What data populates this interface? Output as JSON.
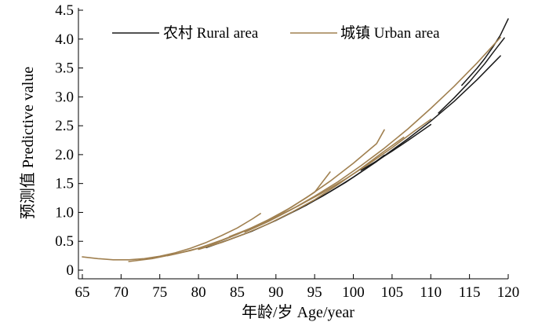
{
  "chart_data": {
    "type": "line",
    "xlabel": "年龄/岁 Age/year",
    "ylabel": "预测值 Predictive value",
    "xlim": [
      65,
      120
    ],
    "ylim": [
      0,
      4.5
    ],
    "xticks": [
      65,
      70,
      75,
      80,
      85,
      90,
      95,
      100,
      105,
      110,
      115,
      120
    ],
    "yticks": [
      "0",
      "0.5",
      "1.0",
      "1.5",
      "2.0",
      "2.5",
      "3.0",
      "3.5",
      "4.0",
      "4.5"
    ],
    "legend_position": "top-center",
    "grid": false,
    "series": [
      {
        "name": "农村 Rural area",
        "color": "#1a1a1a",
        "segments": [
          {
            "x": [
              81,
              84,
              87,
              90,
              93,
              96,
              99,
              102,
              104
            ],
            "y": [
              0.39,
              0.53,
              0.68,
              0.86,
              1.06,
              1.28,
              1.52,
              1.79,
              1.99
            ]
          },
          {
            "x": [
              91,
              94,
              97,
              100,
              103,
              106
            ],
            "y": [
              0.93,
              1.13,
              1.36,
              1.61,
              1.88,
              2.17
            ]
          },
          {
            "x": [
              101,
              103,
              105,
              107,
              110
            ],
            "y": [
              1.73,
              1.89,
              2.06,
              2.24,
              2.52
            ]
          },
          {
            "x": [
              104,
              107,
              110,
              113,
              116,
              119
            ],
            "y": [
              1.98,
              2.27,
              2.58,
              2.92,
              3.3,
              3.71
            ]
          },
          {
            "x": [
              111,
              113,
              115,
              117,
              118,
              119.5
            ],
            "y": [
              2.72,
              2.98,
              3.26,
              3.58,
              3.76,
              4.02
            ]
          },
          {
            "x": [
              114,
              116,
              117,
              118,
              119,
              120
            ],
            "y": [
              3.2,
              3.5,
              3.67,
              3.86,
              4.07,
              4.35
            ]
          }
        ]
      },
      {
        "name": "城镇 Urban area",
        "color": "#a08050",
        "segments": [
          {
            "x": [
              65,
              67,
              69,
              71,
              73,
              75,
              77,
              79,
              81,
              83,
              85,
              87,
              88
            ],
            "y": [
              0.23,
              0.2,
              0.18,
              0.18,
              0.2,
              0.24,
              0.3,
              0.38,
              0.48,
              0.6,
              0.73,
              0.89,
              0.98
            ]
          },
          {
            "x": [
              71,
              74,
              77,
              80,
              83,
              86,
              89,
              92,
              95,
              97
            ],
            "y": [
              0.15,
              0.2,
              0.28,
              0.38,
              0.52,
              0.68,
              0.87,
              1.09,
              1.35,
              1.7
            ]
          },
          {
            "x": [
              76,
              79,
              82,
              85,
              88,
              91,
              94,
              97,
              100,
              103,
              104
            ],
            "y": [
              0.25,
              0.34,
              0.46,
              0.62,
              0.8,
              1.01,
              1.26,
              1.54,
              1.85,
              2.19,
              2.43
            ]
          },
          {
            "x": [
              80,
              83,
              86,
              89,
              92,
              95,
              98,
              101,
              104,
              106.5
            ],
            "y": [
              0.36,
              0.48,
              0.63,
              0.8,
              1.0,
              1.22,
              1.48,
              1.76,
              2.06,
              2.3
            ]
          },
          {
            "x": [
              84,
              87,
              90,
              93,
              96,
              99,
              102,
              105,
              108,
              110
            ],
            "y": [
              0.58,
              0.74,
              0.92,
              1.12,
              1.34,
              1.58,
              1.84,
              2.12,
              2.42,
              2.61
            ]
          },
          {
            "x": [
              86,
              89,
              92,
              95,
              98,
              101,
              104,
              107,
              110,
              113,
              116,
              119
            ],
            "y": [
              0.66,
              0.84,
              1.05,
              1.28,
              1.53,
              1.81,
              2.11,
              2.44,
              2.8,
              3.18,
              3.59,
              4.03
            ]
          }
        ]
      }
    ]
  }
}
